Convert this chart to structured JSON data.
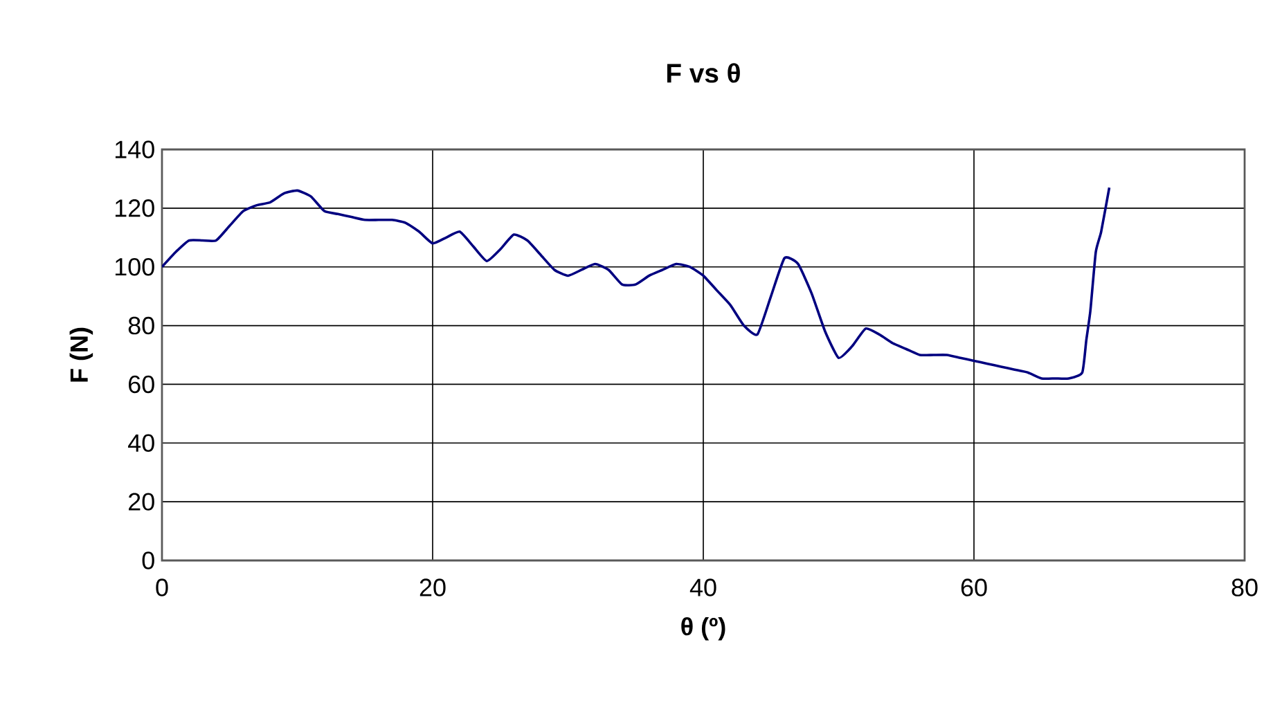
{
  "chart_data": {
    "type": "line",
    "title": "F vs θ",
    "xlabel": "θ (º)",
    "ylabel": "F (N)",
    "xlim": [
      0,
      80
    ],
    "ylim": [
      0,
      140
    ],
    "xticks": [
      0,
      20,
      40,
      60,
      80
    ],
    "yticks": [
      0,
      20,
      40,
      60,
      80,
      100,
      120,
      140
    ],
    "grid": true,
    "marker": "none",
    "line_style": "solid",
    "series": [
      {
        "color": "#000080",
        "x": [
          0,
          1,
          2,
          3,
          4,
          5,
          6,
          7,
          8,
          9,
          10,
          11,
          12,
          13,
          14,
          15,
          16,
          17,
          18,
          19,
          20,
          21,
          22,
          23,
          24,
          25,
          26,
          27,
          28,
          29,
          30,
          31,
          32,
          33,
          34,
          35,
          36,
          37,
          38,
          39,
          40,
          41,
          42,
          43,
          44,
          45,
          46,
          47,
          48,
          49,
          50,
          51,
          52,
          53,
          54,
          55,
          56,
          57,
          58,
          59,
          60,
          61,
          62,
          63,
          64,
          65,
          66,
          67,
          68,
          68.3,
          68.6,
          69,
          69.4,
          70
        ],
        "values": [
          100,
          105,
          109,
          109,
          109,
          114,
          119,
          121,
          122,
          125,
          126,
          124,
          119,
          118,
          117,
          116,
          116,
          116,
          115,
          112,
          108,
          110,
          112,
          107,
          102,
          106,
          111,
          109,
          104,
          99,
          97,
          99,
          101,
          99,
          94,
          94,
          97,
          99,
          101,
          100,
          97,
          92,
          87,
          80,
          77,
          90,
          103,
          101,
          91,
          78,
          69,
          73,
          79,
          77,
          74,
          72,
          70,
          70,
          70,
          69,
          68,
          67,
          66,
          65,
          64,
          62,
          62,
          62,
          64,
          75,
          85,
          105,
          112,
          127
        ]
      }
    ]
  }
}
